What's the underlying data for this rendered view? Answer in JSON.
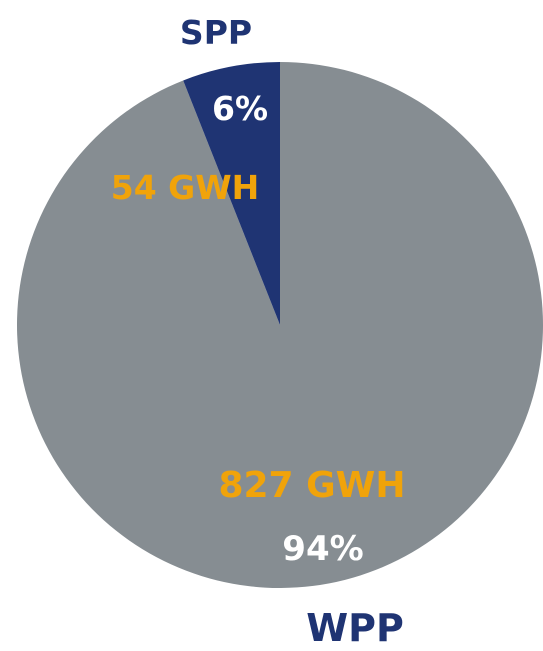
{
  "chart_data": {
    "type": "pie",
    "title": "",
    "slices": [
      {
        "label": "SPP",
        "value_label": "54 GWH",
        "percent_label": "6%",
        "value": 54,
        "percent": 6,
        "color": "#1f3473"
      },
      {
        "label": "WPP",
        "value_label": "827 GWH",
        "percent_label": "94%",
        "value": 827,
        "percent": 94,
        "color": "#868d92"
      }
    ],
    "colors": {
      "category_label": "#1f3473",
      "value_label": "#f0a30a",
      "percent_label": "#ffffff"
    }
  }
}
